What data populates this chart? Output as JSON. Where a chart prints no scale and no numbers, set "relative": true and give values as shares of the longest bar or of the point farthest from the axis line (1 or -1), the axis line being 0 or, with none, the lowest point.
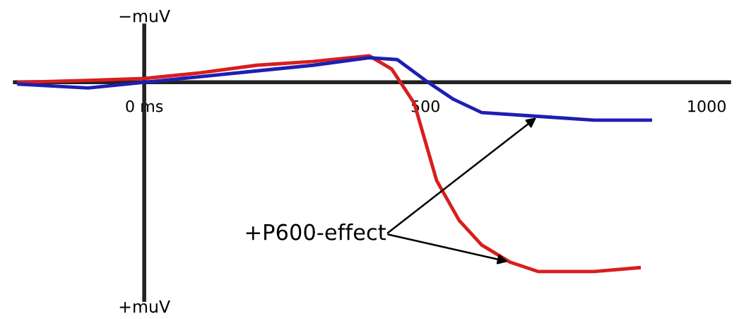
{
  "chart_data": {
    "type": "line",
    "relative": true,
    "xlim": [
      -230,
      1040
    ],
    "xticks": [
      {
        "value": 0,
        "label": "0 ms"
      },
      500,
      1000
    ],
    "tick_labels": "x",
    "legend": false,
    "marker": "none",
    "line_style": "solid",
    "annotations": [
      "−muV",
      "+muV",
      "+P600-effect"
    ],
    "series": [
      {
        "color": "#d81e1e",
        "x": [
          -223,
          -100,
          0,
          100,
          200,
          300,
          400,
          440,
          480,
          520,
          560,
          600,
          650,
          700,
          800,
          880
        ],
        "values": [
          0,
          0.01,
          0.02,
          0.05,
          0.09,
          0.11,
          0.14,
          0.07,
          -0.11,
          -0.52,
          -0.73,
          -0.86,
          -0.95,
          -1,
          -1,
          -0.98
        ]
      },
      {
        "color": "#1e1eb4",
        "x": [
          -223,
          -100,
          0,
          100,
          200,
          300,
          400,
          450,
          500,
          550,
          600,
          700,
          800,
          900
        ],
        "values": [
          -0.01,
          -0.03,
          0,
          0.03,
          0.06,
          0.09,
          0.13,
          0.12,
          0.01,
          -0.09,
          -0.16,
          -0.18,
          -0.2,
          -0.2
        ]
      }
    ]
  }
}
